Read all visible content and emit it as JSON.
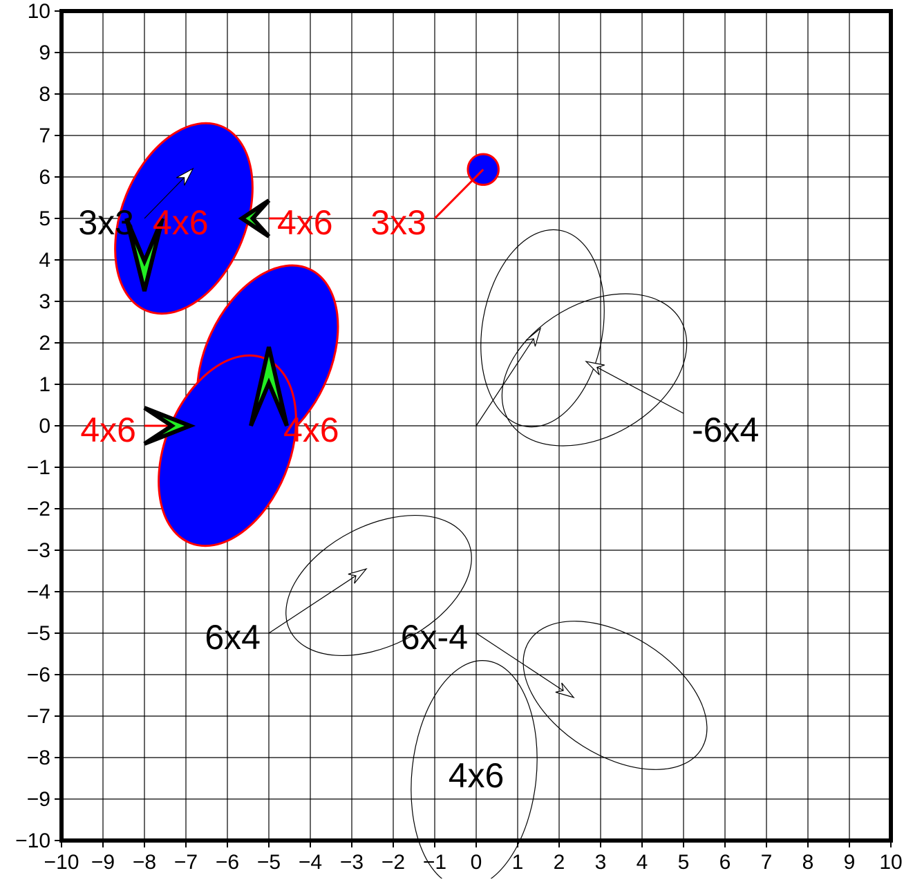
{
  "chart_data": {
    "type": "scatter",
    "title": "",
    "xlabel": "",
    "ylabel": "",
    "xlim": [
      -10,
      10
    ],
    "ylim": [
      -10,
      10
    ],
    "grid": true,
    "x_ticks": [
      -10,
      -9,
      -8,
      -7,
      -6,
      -5,
      -4,
      -3,
      -2,
      -1,
      0,
      1,
      2,
      3,
      4,
      5,
      6,
      7,
      8,
      9,
      10
    ],
    "y_ticks": [
      -10,
      -9,
      -8,
      -7,
      -6,
      -5,
      -4,
      -3,
      -2,
      -1,
      0,
      1,
      2,
      3,
      4,
      5,
      6,
      7,
      8,
      9,
      10
    ],
    "x_tick_labels": [
      "−10",
      "−9",
      "−8",
      "−7",
      "−6",
      "−5",
      "−4",
      "−3",
      "−2",
      "−1",
      "0",
      "1",
      "2",
      "3",
      "4",
      "5",
      "6",
      "7",
      "8",
      "9",
      "10"
    ],
    "y_tick_labels": [
      "−10",
      "−9",
      "−8",
      "−7",
      "−6",
      "−5",
      "−4",
      "−3",
      "−2",
      "−1",
      "0",
      "1",
      "2",
      "3",
      "4",
      "5",
      "6",
      "7",
      "8",
      "9",
      "10"
    ],
    "colors": {
      "fill": "#0000ff",
      "outline": "#ff0000",
      "arrow_fill": "#22ee22",
      "line": "#000000",
      "label_red": "#ff0000",
      "label_black": "#000000"
    },
    "ellipses": [
      {
        "id": "filled-upper-left",
        "cx": -7.05,
        "cy": 5.0,
        "rx": 1.5,
        "ry": 2.4,
        "rotation_deg": 22,
        "filled": true
      },
      {
        "id": "filled-center-upper",
        "cx": -5.03,
        "cy": 1.6,
        "rx": 1.5,
        "ry": 2.4,
        "rotation_deg": 25,
        "filled": true
      },
      {
        "id": "filled-center-lower",
        "cx": -6.0,
        "cy": -0.6,
        "rx": 1.5,
        "ry": 2.4,
        "rotation_deg": 22,
        "filled": true
      },
      {
        "id": "small-circle",
        "cx": 0.17,
        "cy": 6.18,
        "rx": 0.37,
        "ry": 0.37,
        "rotation_deg": 0,
        "filled": true
      },
      {
        "id": "open-upper-a",
        "cx": 1.6,
        "cy": 2.35,
        "rx": 1.45,
        "ry": 2.4,
        "rotation_deg": 10,
        "filled": false
      },
      {
        "id": "open-upper-b",
        "cx": 2.85,
        "cy": 1.35,
        "rx": 1.6,
        "ry": 2.4,
        "rotation_deg": 60,
        "filled": false
      },
      {
        "id": "open-lower-a",
        "cx": -2.35,
        "cy": -3.85,
        "rx": 1.45,
        "ry": 2.4,
        "rotation_deg": 63,
        "filled": false
      },
      {
        "id": "open-lower-b",
        "cx": 3.35,
        "cy": -6.5,
        "rx": 1.45,
        "ry": 2.45,
        "rotation_deg": -58,
        "filled": false
      },
      {
        "id": "open-lower-c",
        "cx": -0.05,
        "cy": -8.4,
        "rx": 1.5,
        "ry": 2.75,
        "rotation_deg": 6,
        "filled": false
      }
    ],
    "thin_arrows": [
      {
        "x1": -8,
        "y1": 5,
        "x2": -6.83,
        "y2": 6.2
      },
      {
        "x1": 0,
        "y1": 0,
        "x2": 1.55,
        "y2": 2.35
      },
      {
        "x1": 5,
        "y1": 0.3,
        "x2": 2.65,
        "y2": 1.55
      },
      {
        "x1": -5,
        "y1": -5,
        "x2": -2.65,
        "y2": -3.45
      },
      {
        "x1": 0,
        "y1": -5,
        "x2": 2.35,
        "y2": -6.55
      }
    ],
    "thick_arrows": [
      {
        "x1": -8,
        "y1": 5,
        "x2": -8,
        "y2": 3.25
      },
      {
        "x1": -5,
        "y1": 5,
        "x2": -5.65,
        "y2": 5
      },
      {
        "x1": -8,
        "y1": 0,
        "x2": -6.9,
        "y2": 0
      },
      {
        "x1": -5,
        "y1": 0,
        "x2": -5,
        "y2": 1.9
      }
    ],
    "leader_lines": [
      {
        "x1": -5,
        "y1": 5,
        "x2": -4.6,
        "y2": 5
      },
      {
        "x1": -1,
        "y1": 5,
        "x2": 0.17,
        "y2": 6.18
      },
      {
        "x1": -8,
        "y1": 0,
        "x2": -7.4,
        "y2": 0
      }
    ],
    "labels": [
      {
        "text": "3x3",
        "x": -8.25,
        "y": 4.92,
        "anchor": "end",
        "color": "black"
      },
      {
        "text": "4x6",
        "x": -7.8,
        "y": 4.92,
        "anchor": "start",
        "color": "red"
      },
      {
        "text": "4x6",
        "x": -4.8,
        "y": 4.92,
        "anchor": "start",
        "color": "red"
      },
      {
        "text": "3x3",
        "x": -1.2,
        "y": 4.92,
        "anchor": "end",
        "color": "red"
      },
      {
        "text": "4x6",
        "x": -8.2,
        "y": -0.08,
        "anchor": "end",
        "color": "red"
      },
      {
        "text": "4x6",
        "x": -4.65,
        "y": -0.08,
        "anchor": "start",
        "color": "red"
      },
      {
        "text": "-6x4",
        "x": 5.2,
        "y": -0.08,
        "anchor": "start",
        "color": "black"
      },
      {
        "text": "6x4",
        "x": -5.2,
        "y": -5.08,
        "anchor": "end",
        "color": "black"
      },
      {
        "text": "6x-4",
        "x": -0.2,
        "y": -5.08,
        "anchor": "end",
        "color": "black"
      },
      {
        "text": "4x6",
        "x": 0,
        "y": -8.42,
        "anchor": "middle",
        "color": "black"
      }
    ]
  }
}
